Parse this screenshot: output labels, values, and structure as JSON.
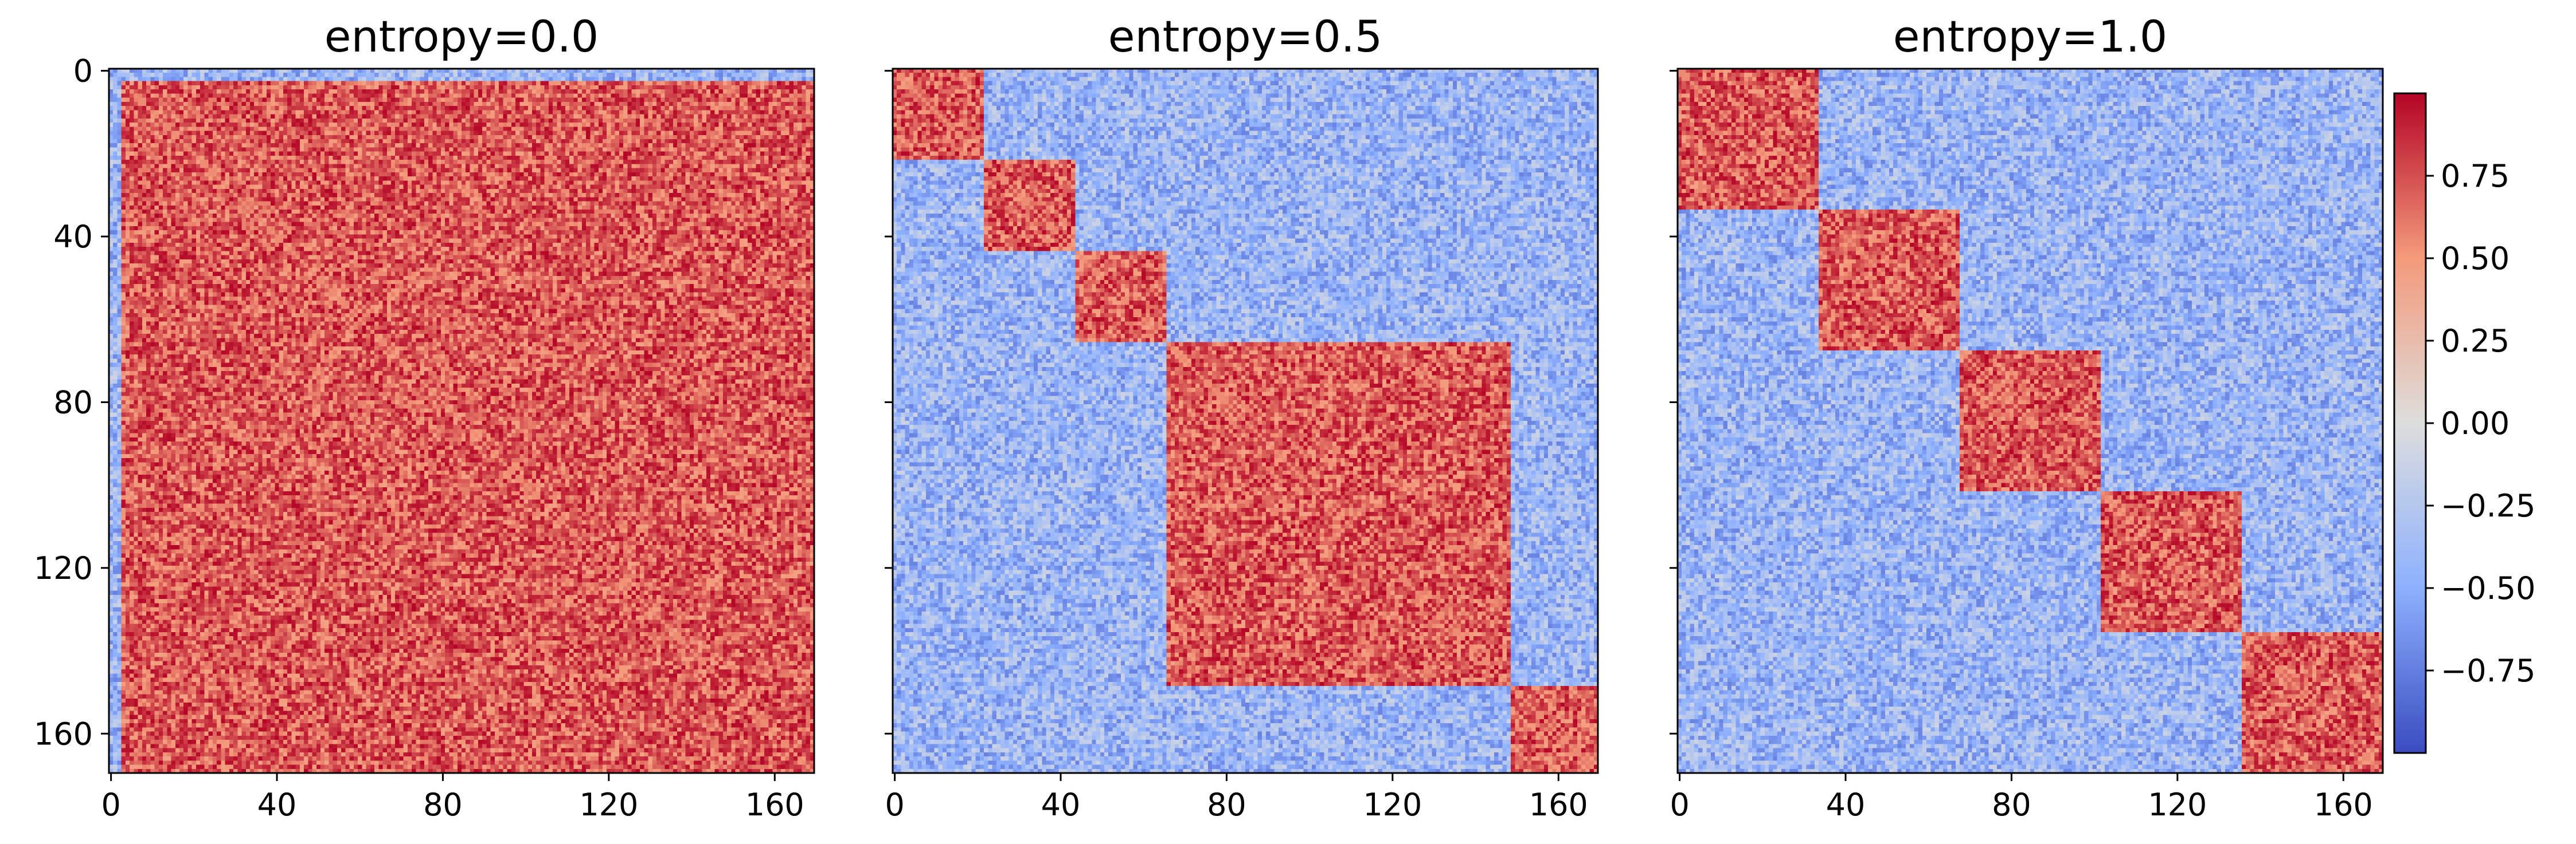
{
  "figure": {
    "colormap": "coolwarm",
    "colors": {
      "low": "#3b4cc0",
      "mid": "#dddddd",
      "high": "#b40426",
      "axes": "#000000"
    }
  },
  "chart_data": [
    {
      "type": "heatmap",
      "title": "entropy=0.0",
      "size": 170,
      "block_sizes": [
        168
      ],
      "block_offset": 3,
      "x_ticks": [
        0,
        40,
        80,
        120,
        160
      ],
      "y_ticks": [
        0,
        40,
        80,
        120,
        160
      ],
      "show_y_tick_labels": true,
      "value_range": [
        -1,
        1
      ]
    },
    {
      "type": "heatmap",
      "title": "entropy=0.5",
      "size": 170,
      "block_sizes": [
        22,
        22,
        22,
        83,
        21
      ],
      "block_offset": 0,
      "x_ticks": [
        0,
        40,
        80,
        120,
        160
      ],
      "y_ticks": [
        0,
        40,
        80,
        120,
        160
      ],
      "show_y_tick_labels": false,
      "value_range": [
        -1,
        1
      ]
    },
    {
      "type": "heatmap",
      "title": "entropy=1.0",
      "size": 170,
      "block_sizes": [
        34,
        34,
        34,
        34,
        34
      ],
      "block_offset": 0,
      "x_ticks": [
        0,
        40,
        80,
        120,
        160
      ],
      "y_ticks": [
        0,
        40,
        80,
        120,
        160
      ],
      "show_y_tick_labels": false,
      "value_range": [
        -1,
        1
      ]
    }
  ],
  "colorbar": {
    "ticks": [
      0.75,
      0.5,
      0.25,
      0.0,
      -0.25,
      -0.5,
      -0.75
    ],
    "tick_labels": [
      "0.75",
      "0.50",
      "0.25",
      "0.00",
      "−0.25",
      "−0.50",
      "−0.75"
    ],
    "range": [
      -1,
      1
    ]
  }
}
